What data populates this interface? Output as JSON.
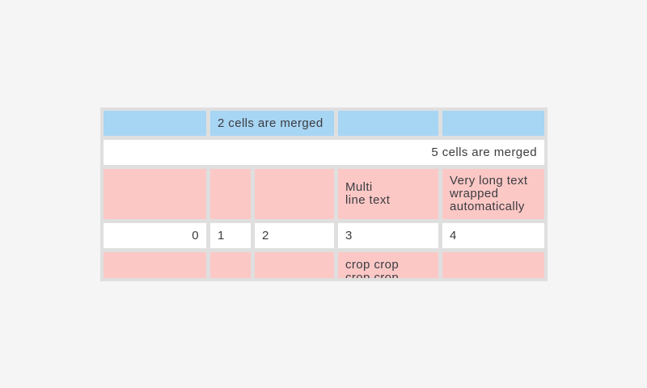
{
  "page": {
    "background": "#f5f5f5"
  },
  "table": {
    "name": "table-widget-demo",
    "background": "#dfdfdf",
    "text_color": "#3c3c40",
    "cell_colors": {
      "blue": "#a7d5f4",
      "pink": "#fbc8c6",
      "white": "#ffffff"
    },
    "rows": [
      {
        "cells": [
          {
            "text": ""
          },
          {
            "text": "2 cells are merged"
          },
          {
            "text": ""
          },
          {
            "text": ""
          }
        ]
      },
      {
        "cells": [
          {
            "text": "5 cells are merged"
          }
        ]
      },
      {
        "cells": [
          {
            "text": ""
          },
          {
            "text": ""
          },
          {
            "text": ""
          },
          {
            "text": "Multi\nline text"
          },
          {
            "text": "Very long text\nwrapped\nautomatically"
          }
        ]
      },
      {
        "cells": [
          {
            "text": "0"
          },
          {
            "text": "1"
          },
          {
            "text": "2"
          },
          {
            "text": "3"
          },
          {
            "text": "4"
          }
        ]
      },
      {
        "cells": [
          {
            "text": ""
          },
          {
            "text": ""
          },
          {
            "text": ""
          },
          {
            "text": "crop crop\ncrop crop"
          },
          {
            "text": ""
          }
        ]
      }
    ]
  }
}
